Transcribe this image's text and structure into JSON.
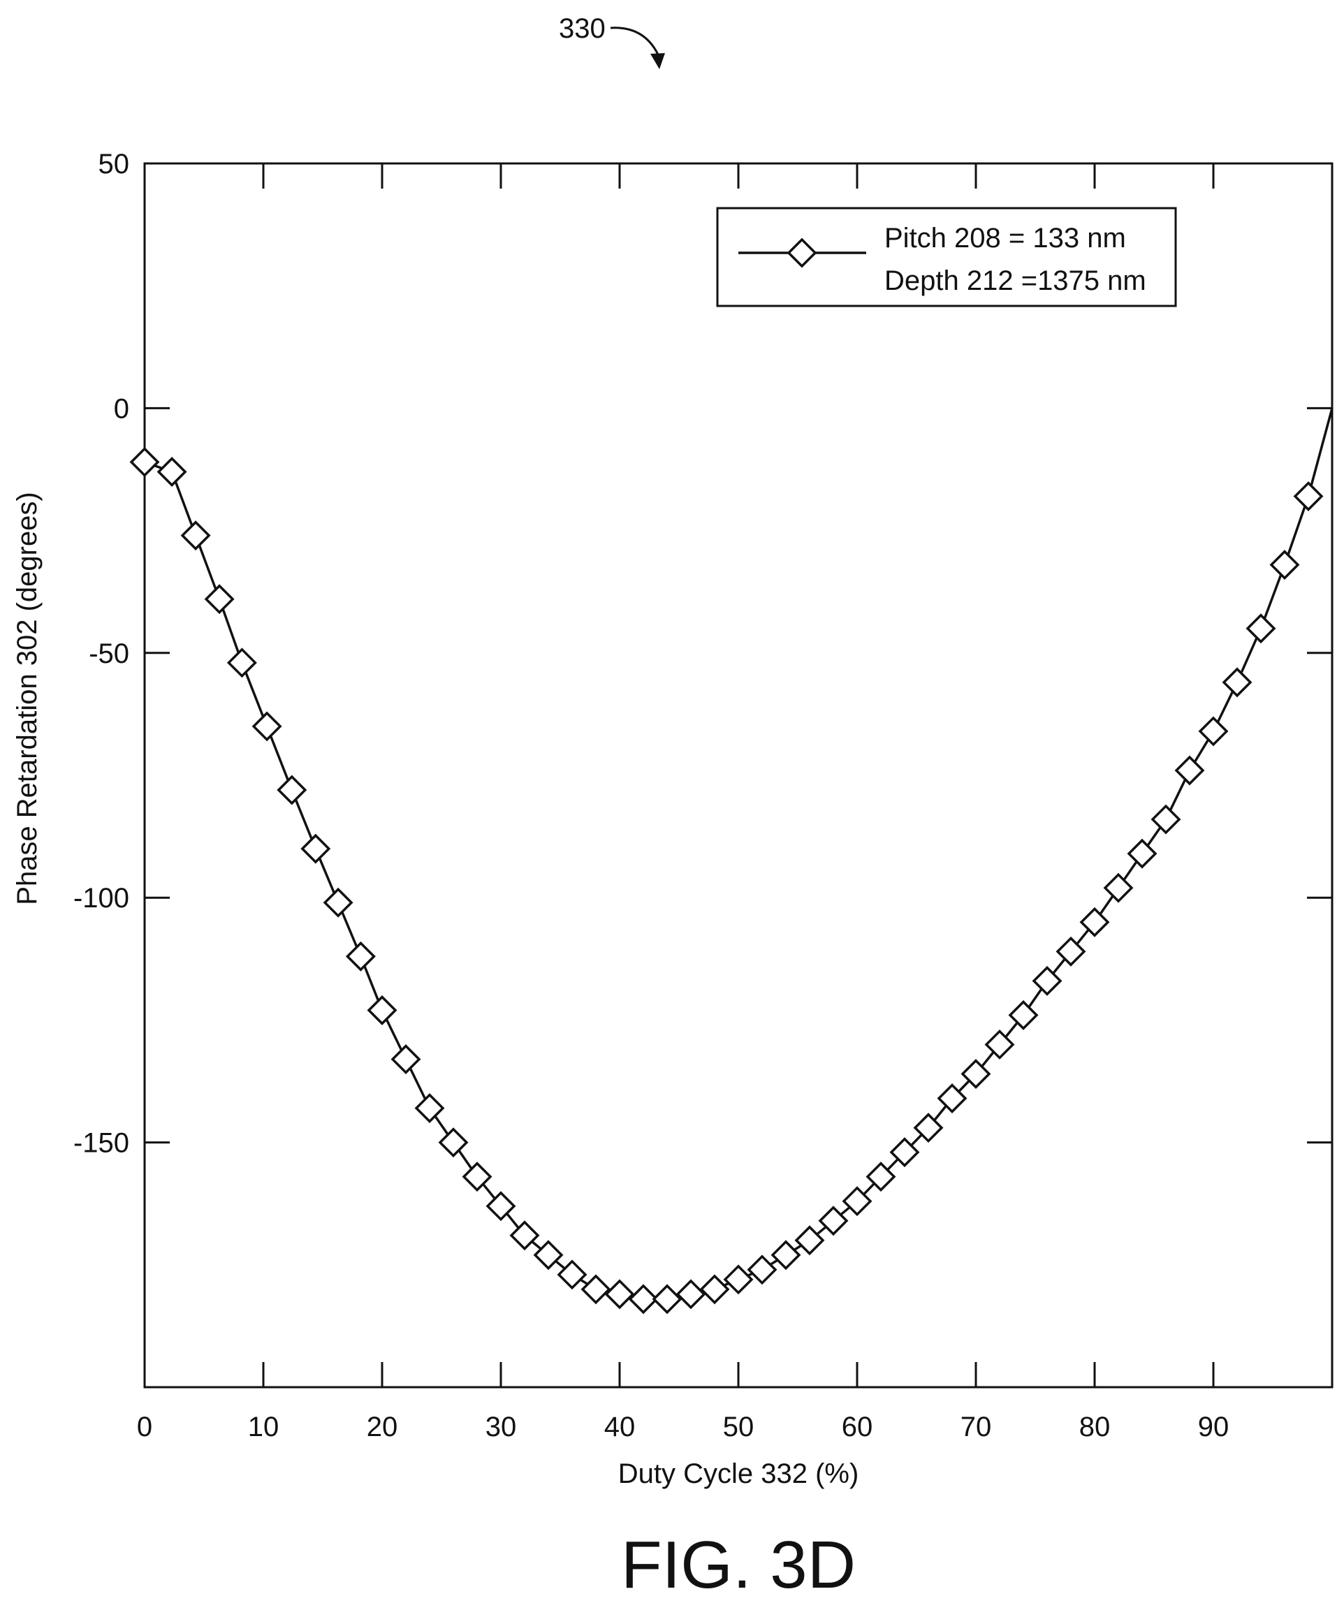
{
  "figure": {
    "reference_number": "330",
    "caption": "FIG. 3D"
  },
  "chart_data": {
    "type": "line",
    "title": "",
    "xlabel": "Duty Cycle 332 (%)",
    "ylabel": "Phase Retardation 302 (degrees)",
    "xlim": [
      0,
      100
    ],
    "ylim": [
      -200,
      50
    ],
    "x_ticks": [
      0,
      10,
      20,
      30,
      40,
      50,
      60,
      70,
      80,
      90
    ],
    "x_tick_labels": [
      "0",
      "10",
      "20",
      "30",
      "40",
      "50",
      "60",
      "70",
      "80",
      "90"
    ],
    "y_ticks": [
      50,
      0,
      -50,
      -100,
      -150
    ],
    "y_tick_labels": [
      "50",
      "0",
      "-50",
      "-100",
      "-150"
    ],
    "grid": false,
    "legend_position": "top-right",
    "marker": "diamond",
    "line_color": "#111111",
    "series": [
      {
        "legend_lines": [
          "Pitch 208 = 133 nm",
          "Depth 212 =1375 nm"
        ],
        "x": [
          0,
          2.3,
          4.3,
          6.3,
          8.2,
          10.3,
          12.4,
          14.4,
          16.3,
          18.2,
          20.0,
          22.0,
          24.0,
          26.0,
          28.0,
          30.0,
          32.0,
          34.0,
          36.0,
          38.0,
          40.0,
          42.0,
          44.0,
          46.0,
          48.0,
          50.0,
          52.0,
          54.0,
          56.0,
          58.0,
          60.0,
          62.0,
          64.0,
          66.0,
          68.0,
          70.0,
          72.0,
          74.0,
          76.0,
          78.0,
          80.0,
          82.0,
          84.0,
          86.0,
          88.0,
          90.0,
          92.0,
          94.0,
          96.0,
          98.0
        ],
        "y": [
          -11,
          -13,
          -26,
          -39,
          -52,
          -65,
          -78,
          -90,
          -101,
          -112,
          -123,
          -133,
          -143,
          -150,
          -157,
          -163,
          -169,
          -173,
          -177,
          -180,
          -181,
          -182,
          -182,
          -181,
          -180,
          -178,
          -176,
          -173,
          -170,
          -166,
          -162,
          -157,
          -152,
          -147,
          -141,
          -136,
          -130,
          -124,
          -117,
          -111,
          -105,
          -98,
          -91,
          -84,
          -74,
          -66,
          -56,
          -45,
          -32,
          -18
        ]
      }
    ],
    "curve_end": {
      "x": 100,
      "y": 0
    }
  }
}
